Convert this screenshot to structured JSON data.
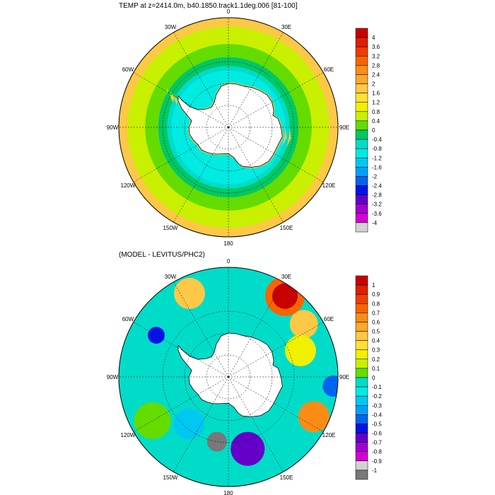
{
  "titles": {
    "top": "TEMP at z=2414.0m, b40.1850.track1.1deg.006 [81-100]",
    "bottom": "(MODEL - LEVITUS/PHC2)"
  },
  "chart_data": [
    {
      "type": "heatmap",
      "projection": "south-polar-stereographic",
      "title": "TEMP at z=2414.0m, b40.1850.track1.1deg.006 [81-100]",
      "longitude_labels": [
        "0",
        "30E",
        "60E",
        "90E",
        "120E",
        "150E",
        "180",
        "150W",
        "120W",
        "90W",
        "60W",
        "30W"
      ],
      "colorbar": {
        "levels": [
          "4",
          "3.6",
          "3.2",
          "2.8",
          "2.4",
          "2",
          "1.6",
          "1.2",
          "0.8",
          "0.4",
          "0",
          "-0.4",
          "-0.8",
          "-1.2",
          "-1.6",
          "-2",
          "-2.4",
          "-2.8",
          "-3.2",
          "-3.6",
          "-4"
        ],
        "colors": [
          "#c80000",
          "#e01e00",
          "#f03c00",
          "#f86400",
          "#fa8c14",
          "#fca828",
          "#fcc846",
          "#ffe032",
          "#f0f000",
          "#c8f000",
          "#64dc00",
          "#00c864",
          "#00dcc8",
          "#00ebe1",
          "#00c8f0",
          "#00a0fa",
          "#0064f0",
          "#0014e6",
          "#6400c8",
          "#a000d2",
          "#d200d2",
          "#d2d2d2",
          "#a8a8a8",
          "#787878"
        ]
      },
      "regions": [
        {
          "lat": -62,
          "value": 0.2
        },
        {
          "lat": -55,
          "value": 1.0
        },
        {
          "lat": -48,
          "value": 1.8
        }
      ]
    },
    {
      "type": "heatmap",
      "projection": "south-polar-stereographic",
      "title": "(MODEL - LEVITUS/PHC2)",
      "longitude_labels": [
        "0",
        "30E",
        "60E",
        "90E",
        "120E",
        "150E",
        "180",
        "150W",
        "120W",
        "90W",
        "60W",
        "30W"
      ],
      "colorbar": {
        "levels": [
          "1",
          "0.9",
          "0.8",
          "0.7",
          "0.6",
          "0.5",
          "0.4",
          "0.3",
          "0.2",
          "0.1",
          "0",
          "-0.1",
          "-0.2",
          "-0.3",
          "-0.4",
          "-0.5",
          "-0.6",
          "-0.7",
          "-0.8",
          "-0.9",
          "-1"
        ]
      }
    }
  ],
  "colors": {
    "land": "#ffffff",
    "coast": "#000000"
  }
}
